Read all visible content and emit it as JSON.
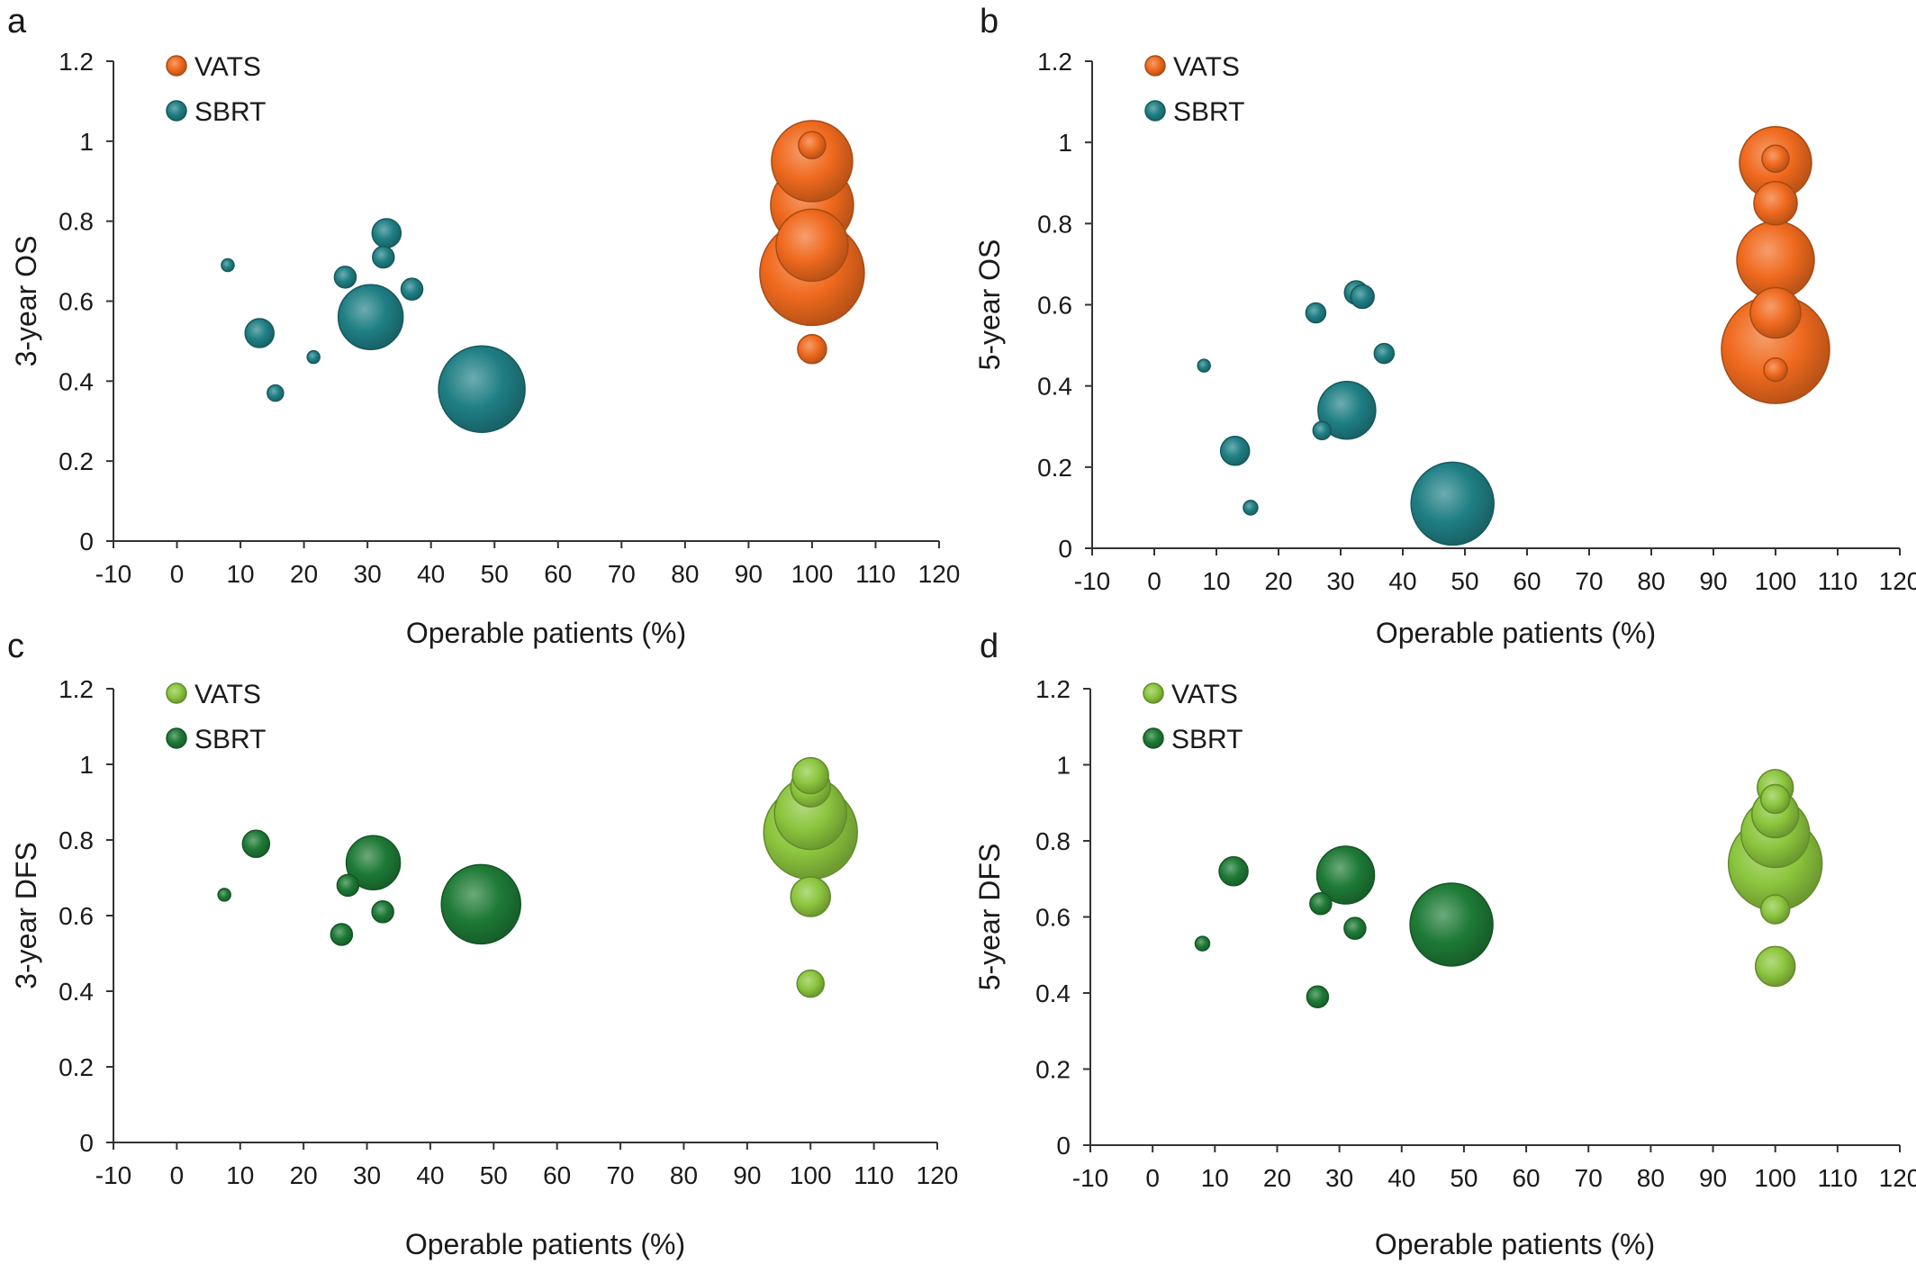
{
  "chart_data": [
    {
      "panel": "a",
      "type": "scatter",
      "title": "",
      "xlabel": "Operable patients (%)",
      "ylabel": "3-year OS",
      "xlim": [
        -10,
        120
      ],
      "ylim": [
        0,
        1.2
      ],
      "xticks": [
        "-10",
        "0",
        "10",
        "20",
        "30",
        "40",
        "50",
        "60",
        "70",
        "80",
        "90",
        "100",
        "110",
        "120"
      ],
      "yticks": [
        "0",
        "0.2",
        "0.4",
        "0.6",
        "0.8",
        "1",
        "1.2"
      ],
      "grid": false,
      "legend": "top-left",
      "series": [
        {
          "name": "VATS",
          "color": "#f06a1e",
          "points": [
            {
              "x": 100,
              "y": 0.67,
              "r": 58
            },
            {
              "x": 100,
              "y": 0.74,
              "r": 40
            },
            {
              "x": 100,
              "y": 0.84,
              "r": 46
            },
            {
              "x": 100,
              "y": 0.95,
              "r": 45
            },
            {
              "x": 100,
              "y": 0.99,
              "r": 15
            },
            {
              "x": 100,
              "y": 0.48,
              "r": 16
            }
          ]
        },
        {
          "name": "SBRT",
          "color": "#1f7f84",
          "points": [
            {
              "x": 8,
              "y": 0.69,
              "r": 7
            },
            {
              "x": 13,
              "y": 0.52,
              "r": 16
            },
            {
              "x": 15.5,
              "y": 0.37,
              "r": 9
            },
            {
              "x": 21.5,
              "y": 0.46,
              "r": 7
            },
            {
              "x": 26.5,
              "y": 0.66,
              "r": 12
            },
            {
              "x": 30.5,
              "y": 0.56,
              "r": 36
            },
            {
              "x": 32.5,
              "y": 0.71,
              "r": 12
            },
            {
              "x": 33,
              "y": 0.77,
              "r": 16
            },
            {
              "x": 37,
              "y": 0.63,
              "r": 12
            },
            {
              "x": 48,
              "y": 0.38,
              "r": 48
            }
          ]
        }
      ]
    },
    {
      "panel": "b",
      "type": "scatter",
      "title": "",
      "xlabel": "Operable patients (%)",
      "ylabel": "5-year OS",
      "xlim": [
        -10,
        120
      ],
      "ylim": [
        0,
        1.2
      ],
      "xticks": [
        "-10",
        "0",
        "10",
        "20",
        "30",
        "40",
        "50",
        "60",
        "70",
        "80",
        "90",
        "100",
        "110",
        "120"
      ],
      "yticks": [
        "0",
        "0.2",
        "0.4",
        "0.6",
        "0.8",
        "1",
        "1.2"
      ],
      "grid": false,
      "legend": "top-left",
      "series": [
        {
          "name": "VATS",
          "color": "#f06a1e",
          "points": [
            {
              "x": 100,
              "y": 0.49,
              "r": 60
            },
            {
              "x": 100,
              "y": 0.58,
              "r": 28
            },
            {
              "x": 100,
              "y": 0.71,
              "r": 43
            },
            {
              "x": 100,
              "y": 0.85,
              "r": 24
            },
            {
              "x": 100,
              "y": 0.95,
              "r": 40
            },
            {
              "x": 100,
              "y": 0.96,
              "r": 15
            },
            {
              "x": 100,
              "y": 0.44,
              "r": 13
            }
          ]
        },
        {
          "name": "SBRT",
          "color": "#1f7f84",
          "points": [
            {
              "x": 8,
              "y": 0.45,
              "r": 7
            },
            {
              "x": 13,
              "y": 0.24,
              "r": 16
            },
            {
              "x": 15.5,
              "y": 0.1,
              "r": 8
            },
            {
              "x": 26,
              "y": 0.58,
              "r": 11
            },
            {
              "x": 27,
              "y": 0.29,
              "r": 10
            },
            {
              "x": 31,
              "y": 0.34,
              "r": 32
            },
            {
              "x": 32.5,
              "y": 0.63,
              "r": 13
            },
            {
              "x": 33.5,
              "y": 0.62,
              "r": 13
            },
            {
              "x": 37,
              "y": 0.48,
              "r": 11
            },
            {
              "x": 48,
              "y": 0.11,
              "r": 46
            }
          ]
        }
      ]
    },
    {
      "panel": "c",
      "type": "scatter",
      "title": "",
      "xlabel": "Operable patients (%)",
      "ylabel": "3-year DFS",
      "xlim": [
        -10,
        120
      ],
      "ylim": [
        0,
        1.2
      ],
      "xticks": [
        "-10",
        "0",
        "10",
        "20",
        "30",
        "40",
        "50",
        "60",
        "70",
        "80",
        "90",
        "100",
        "110",
        "120"
      ],
      "yticks": [
        "0",
        "0.2",
        "0.4",
        "0.6",
        "0.8",
        "1",
        "1.2"
      ],
      "grid": false,
      "legend": "top-left",
      "series": [
        {
          "name": "VATS",
          "color": "#8cc63e",
          "points": [
            {
              "x": 100,
              "y": 0.82,
              "r": 52
            },
            {
              "x": 100,
              "y": 0.87,
              "r": 40
            },
            {
              "x": 100,
              "y": 0.94,
              "r": 22
            },
            {
              "x": 100,
              "y": 0.97,
              "r": 20
            },
            {
              "x": 100,
              "y": 0.65,
              "r": 22
            },
            {
              "x": 100,
              "y": 0.42,
              "r": 15
            }
          ]
        },
        {
          "name": "SBRT",
          "color": "#1e7a36",
          "points": [
            {
              "x": 7.5,
              "y": 0.655,
              "r": 7
            },
            {
              "x": 12.5,
              "y": 0.79,
              "r": 15
            },
            {
              "x": 26,
              "y": 0.55,
              "r": 12
            },
            {
              "x": 27,
              "y": 0.68,
              "r": 12
            },
            {
              "x": 31,
              "y": 0.74,
              "r": 30
            },
            {
              "x": 32.5,
              "y": 0.61,
              "r": 12
            },
            {
              "x": 48,
              "y": 0.63,
              "r": 44
            }
          ]
        }
      ]
    },
    {
      "panel": "d",
      "type": "scatter",
      "title": "",
      "xlabel": "Operable patients (%)",
      "ylabel": "5-year DFS",
      "xlim": [
        -10,
        120
      ],
      "ylim": [
        0,
        1.2
      ],
      "xticks": [
        "-10",
        "0",
        "10",
        "20",
        "30",
        "40",
        "50",
        "60",
        "70",
        "80",
        "90",
        "100",
        "110",
        "120"
      ],
      "yticks": [
        "0",
        "0.2",
        "0.4",
        "0.6",
        "0.8",
        "1",
        "1.2"
      ],
      "grid": false,
      "legend": "top-left",
      "series": [
        {
          "name": "VATS",
          "color": "#8cc63e",
          "points": [
            {
              "x": 100,
              "y": 0.74,
              "r": 52
            },
            {
              "x": 100,
              "y": 0.82,
              "r": 38
            },
            {
              "x": 100,
              "y": 0.87,
              "r": 26
            },
            {
              "x": 100,
              "y": 0.94,
              "r": 20
            },
            {
              "x": 100,
              "y": 0.91,
              "r": 16
            },
            {
              "x": 100,
              "y": 0.62,
              "r": 16
            },
            {
              "x": 100,
              "y": 0.47,
              "r": 22
            }
          ]
        },
        {
          "name": "SBRT",
          "color": "#1e7a36",
          "points": [
            {
              "x": 8,
              "y": 0.53,
              "r": 8
            },
            {
              "x": 13,
              "y": 0.72,
              "r": 16
            },
            {
              "x": 26.5,
              "y": 0.39,
              "r": 12
            },
            {
              "x": 27,
              "y": 0.635,
              "r": 12
            },
            {
              "x": 31,
              "y": 0.71,
              "r": 32
            },
            {
              "x": 32.5,
              "y": 0.57,
              "r": 12
            },
            {
              "x": 48,
              "y": 0.58,
              "r": 46
            }
          ]
        }
      ]
    }
  ]
}
